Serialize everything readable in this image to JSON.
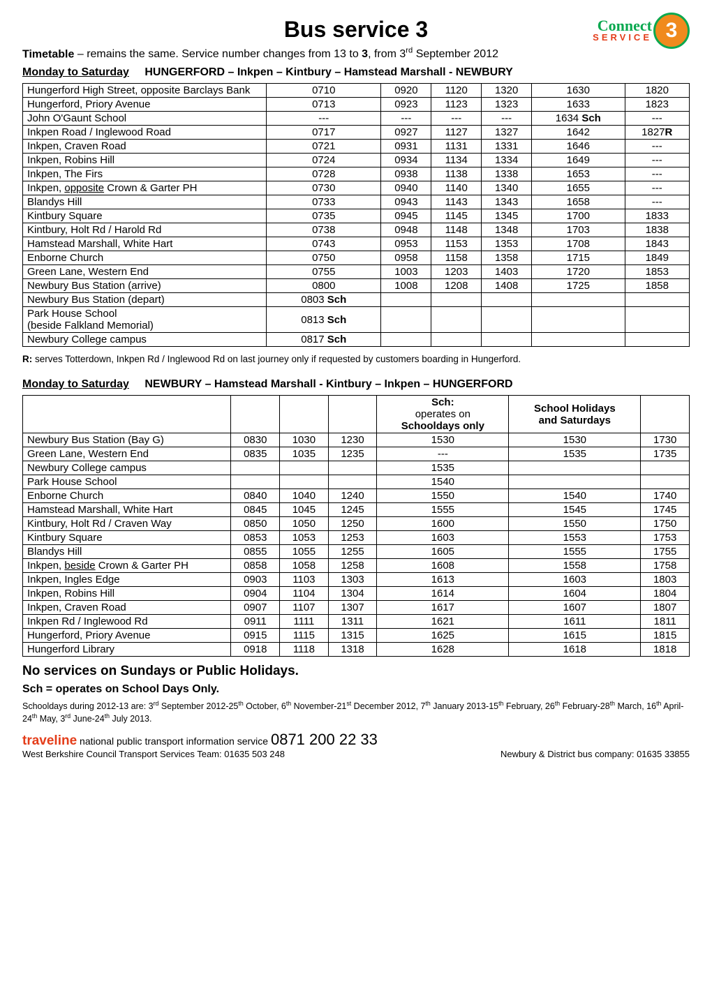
{
  "header": {
    "title": "Bus service 3",
    "logo_connect": "Connect",
    "logo_service": "SERVICE",
    "logo_number": "3"
  },
  "intro": {
    "prefix": "Timetable",
    "rest_html": " – remains the same.  Service number changes from 13 to <b>3</b>, from 3<sup>rd</sup> September 2012"
  },
  "outbound": {
    "heading_left": "Monday to Saturday",
    "heading_right": "HUNGERFORD – Inkpen – Kintbury – Hamstead Marshall - NEWBURY",
    "col_widths": [
      "34%",
      "16%",
      "7%",
      "7%",
      "7%",
      "13%",
      "9%"
    ],
    "rows": [
      {
        "stop": "Hungerford High Street, opposite Barclays Bank",
        "times": [
          "0710",
          "0920",
          "1120",
          "1320",
          "1630",
          "1820"
        ]
      },
      {
        "stop": "Hungerford, Priory Avenue",
        "times": [
          "0713",
          "0923",
          "1123",
          "1323",
          "1633",
          "1823"
        ]
      },
      {
        "stop": "John O'Gaunt School",
        "times": [
          "---",
          "---",
          "---",
          "---",
          "1634 <b>Sch</b>",
          "---"
        ]
      },
      {
        "stop": "Inkpen Road / Inglewood Road",
        "times": [
          "0717",
          "0927",
          "1127",
          "1327",
          "1642",
          "1827<b>R</b>"
        ]
      },
      {
        "stop": "Inkpen, Craven Road",
        "times": [
          "0721",
          "0931",
          "1131",
          "1331",
          "1646",
          "---"
        ]
      },
      {
        "stop": "Inkpen, Robins Hill",
        "times": [
          "0724",
          "0934",
          "1134",
          "1334",
          "1649",
          "---"
        ]
      },
      {
        "stop": "Inkpen, The Firs",
        "times": [
          "0728",
          "0938",
          "1138",
          "1338",
          "1653",
          "---"
        ]
      },
      {
        "stop": "Inkpen, <u>opposite</u> Crown &amp; Garter PH",
        "times": [
          "0730",
          "0940",
          "1140",
          "1340",
          "1655",
          "---"
        ]
      },
      {
        "stop": "Blandys Hill",
        "times": [
          "0733",
          "0943",
          "1143",
          "1343",
          "1658",
          "---"
        ]
      },
      {
        "stop": "Kintbury Square",
        "times": [
          "0735",
          "0945",
          "1145",
          "1345",
          "1700",
          "1833"
        ]
      },
      {
        "stop": "Kintbury, Holt Rd / Harold Rd",
        "times": [
          "0738",
          "0948",
          "1148",
          "1348",
          "1703",
          "1838"
        ]
      },
      {
        "stop": "Hamstead Marshall, White Hart",
        "times": [
          "0743",
          "0953",
          "1153",
          "1353",
          "1708",
          "1843"
        ]
      },
      {
        "stop": "Enborne Church",
        "times": [
          "0750",
          "0958",
          "1158",
          "1358",
          "1715",
          "1849"
        ]
      },
      {
        "stop": "Green Lane, Western End",
        "times": [
          "0755",
          "1003",
          "1203",
          "1403",
          "1720",
          "1853"
        ]
      },
      {
        "stop": "Newbury Bus Station (arrive)",
        "times": [
          "0800",
          "1008",
          "1208",
          "1408",
          "1725",
          "1858"
        ]
      },
      {
        "stop": "Newbury Bus Station (depart)",
        "times": [
          "0803 <b>Sch</b>",
          "",
          "",
          "",
          "",
          ""
        ]
      },
      {
        "stop": "Park House School<br>(beside Falkland Memorial)",
        "times": [
          "0813 <b>Sch</b>",
          "",
          "",
          "",
          "",
          ""
        ]
      },
      {
        "stop": "Newbury College campus",
        "times": [
          "0817 <b>Sch</b>",
          "",
          "",
          "",
          "",
          ""
        ]
      }
    ],
    "note_r": "<b>R:</b> serves Totterdown, Inkpen Rd / Inglewood Rd on last journey only if requested by customers boarding in Hungerford."
  },
  "inbound": {
    "heading_left": "Monday to Saturday",
    "heading_right": "NEWBURY – Hamstead Marshall - Kintbury – Inkpen – HUNGERFORD",
    "col_widths": [
      "30%",
      "7%",
      "7%",
      "7%",
      "19%",
      "19%",
      "7%"
    ],
    "header_row": [
      "",
      "",
      "",
      "",
      "<b>Sch:</b> operates on<br><b>Schooldays only</b>",
      "<b>School Holidays<br>and Saturdays</b>",
      ""
    ],
    "rows": [
      {
        "stop": "Newbury Bus Station (Bay G)",
        "times": [
          "0830",
          "1030",
          "1230",
          "1530",
          "1530",
          "1730"
        ]
      },
      {
        "stop": "Green Lane, Western End",
        "times": [
          "0835",
          "1035",
          "1235",
          "---",
          "1535",
          "1735"
        ]
      },
      {
        "stop": "Newbury College campus",
        "times": [
          "",
          "",
          "",
          "1535",
          "",
          ""
        ]
      },
      {
        "stop": "Park House School",
        "times": [
          "",
          "",
          "",
          "1540",
          "",
          ""
        ]
      },
      {
        "stop": "Enborne Church",
        "times": [
          "0840",
          "1040",
          "1240",
          "1550",
          "1540",
          "1740"
        ]
      },
      {
        "stop": "Hamstead Marshall, White Hart",
        "times": [
          "0845",
          "1045",
          "1245",
          "1555",
          "1545",
          "1745"
        ]
      },
      {
        "stop": "Kintbury, Holt Rd / Craven Way",
        "times": [
          "0850",
          "1050",
          "1250",
          "1600",
          "1550",
          "1750"
        ]
      },
      {
        "stop": "Kintbury Square",
        "times": [
          "0853",
          "1053",
          "1253",
          "1603",
          "1553",
          "1753"
        ]
      },
      {
        "stop": "Blandys Hill",
        "times": [
          "0855",
          "1055",
          "1255",
          "1605",
          "1555",
          "1755"
        ]
      },
      {
        "stop": "Inkpen, <u>beside</u> Crown &amp; Garter PH",
        "times": [
          "0858",
          "1058",
          "1258",
          "1608",
          "1558",
          "1758"
        ]
      },
      {
        "stop": "Inkpen, Ingles Edge",
        "times": [
          "0903",
          "1103",
          "1303",
          "1613",
          "1603",
          "1803"
        ]
      },
      {
        "stop": "Inkpen, Robins Hill",
        "times": [
          "0904",
          "1104",
          "1304",
          "1614",
          "1604",
          "1804"
        ]
      },
      {
        "stop": "Inkpen, Craven Road",
        "times": [
          "0907",
          "1107",
          "1307",
          "1617",
          "1607",
          "1807"
        ]
      },
      {
        "stop": "Inkpen Rd / Inglewood Rd",
        "times": [
          "0911",
          "1111",
          "1311",
          "1621",
          "1611",
          "1811"
        ]
      },
      {
        "stop": "Hungerford, Priory Avenue",
        "times": [
          "0915",
          "1115",
          "1315",
          "1625",
          "1615",
          "1815"
        ]
      },
      {
        "stop": "Hungerford Library",
        "times": [
          "0918",
          "1118",
          "1318",
          "1628",
          "1618",
          "1818"
        ]
      }
    ]
  },
  "footer": {
    "no_service": "No services on Sundays or Public Holidays.",
    "sch_line": "Sch = operates on School Days Only.",
    "school_dates_html": "Schooldays during 2012-13 are: 3<sup>rd</sup> September 2012-25<sup>th</sup> October,  6<sup>th</sup> November-21<sup>st</sup> December 2012,  7<sup>th</sup> January 2013-15<sup>th</sup> February,  26<sup>th</sup> February-28<sup>th</sup> March, 16<sup>th</sup> April-24<sup>th</sup> May, 3<sup>rd</sup> June-24<sup>th</sup> July 2013.",
    "traveline_word": "traveline",
    "traveline_rest": " national public transport information service ",
    "traveline_number": "0871 200 22 33",
    "contact_left": "West Berkshire Council Transport Services Team: 01635 503 248",
    "contact_right": "Newbury & District bus company: 01635 33855"
  }
}
